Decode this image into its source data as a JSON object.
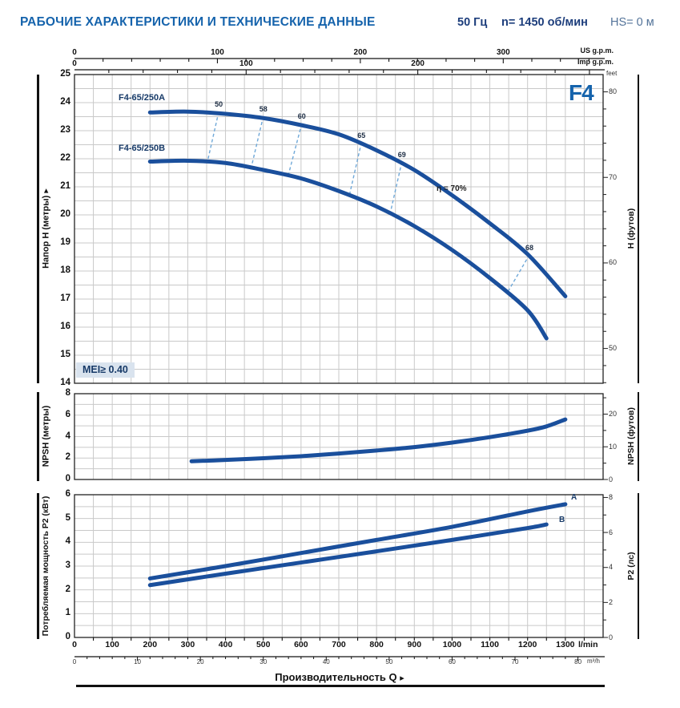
{
  "header": {
    "title": "РАБОЧИЕ ХАРАКТЕРИСТИКИ И ТЕХНИЧЕСКИЕ ДАННЫЕ",
    "frequency": "50 Гц",
    "speed": "n= 1450 об/мин",
    "suction_head": "HS= 0 м"
  },
  "model_badge": "F4",
  "icons": {
    "arrow_right": "▸"
  },
  "colors": {
    "title_blue": "#1563ac",
    "navy": "#1d3e7c",
    "curve_blue": "#1a4f9c",
    "eff_dash_blue": "#6fa8d8",
    "grid_gray": "#c9c9c9",
    "border_dark": "#222222",
    "mei_bg": "#d9e3ee"
  },
  "scales": {
    "us_gpm": {
      "unit": "US g.p.m.",
      "ticks": [
        0,
        100,
        200,
        300
      ],
      "lmin_per_unit": 3.785
    },
    "imp_gpm": {
      "unit": "Imp g.p.m.",
      "ticks": [
        0,
        100,
        200
      ],
      "lmin_per_unit": 4.546
    },
    "lmin": {
      "unit": "l/min",
      "ticks": [
        0,
        100,
        200,
        300,
        400,
        500,
        600,
        700,
        800,
        900,
        1000,
        1100,
        1200,
        1300
      ]
    },
    "m3h": {
      "unit": "m³/h",
      "ticks": [
        0,
        10,
        20,
        30,
        40,
        50,
        60,
        70,
        80
      ],
      "lmin_per_unit": 16.667
    },
    "q_axis_label": "Производительность Q"
  },
  "chart_data": [
    {
      "id": "head",
      "type": "line",
      "title": "F4",
      "ylabel_left": "Напор H (метры)",
      "ylabel_right": "H (футов)",
      "feet_label": "feet",
      "ylim_m": [
        14,
        25
      ],
      "xlim_lmin": [
        0,
        1400
      ],
      "yticks_left": [
        25,
        24,
        23,
        22,
        21,
        20,
        19,
        18,
        17,
        16,
        15,
        14
      ],
      "yticks_right_ft": [
        80,
        70,
        60,
        50
      ],
      "series": [
        {
          "name": "F4-65/250A",
          "x": [
            200,
            300,
            400,
            500,
            600,
            700,
            800,
            900,
            1000,
            1100,
            1200,
            1300
          ],
          "y": [
            23.65,
            23.68,
            23.6,
            23.45,
            23.2,
            22.87,
            22.3,
            21.6,
            20.7,
            19.7,
            18.6,
            17.1
          ]
        },
        {
          "name": "F4-65/250B",
          "x": [
            200,
            300,
            400,
            500,
            600,
            700,
            800,
            900,
            1000,
            1100,
            1200,
            1250
          ],
          "y": [
            21.9,
            21.93,
            21.85,
            21.6,
            21.3,
            20.85,
            20.3,
            19.6,
            18.75,
            17.75,
            16.6,
            15.6
          ]
        }
      ],
      "efficiency_points": [
        {
          "label": "50",
          "qA": 382,
          "qB": 352
        },
        {
          "label": "58",
          "qA": 500,
          "qB": 468
        },
        {
          "label": "60",
          "qA": 602,
          "qB": 566
        },
        {
          "label": "65",
          "qA": 760,
          "qB": 728
        },
        {
          "label": "69",
          "qA": 867,
          "qB": 836
        },
        {
          "label": "68",
          "qA": 1205,
          "qB": 1146
        }
      ],
      "efficiency_curve_label": "η = 70%",
      "mei_label": "MEI≥ 0.40"
    },
    {
      "id": "npsh",
      "type": "line",
      "ylabel_left": "NPSH (метры)",
      "ylabel_right": "NPSH (футов)",
      "ylim_m": [
        0,
        8
      ],
      "yticks_left": [
        8,
        6,
        4,
        2,
        0
      ],
      "yticks_right_ft": [
        20,
        10,
        0
      ],
      "series": [
        {
          "name": "NPSH",
          "x": [
            310,
            400,
            500,
            600,
            700,
            800,
            900,
            1000,
            1100,
            1200,
            1250,
            1300
          ],
          "y": [
            1.7,
            1.82,
            1.98,
            2.17,
            2.42,
            2.7,
            3.02,
            3.44,
            3.95,
            4.55,
            4.95,
            5.6
          ]
        }
      ]
    },
    {
      "id": "p2",
      "type": "line",
      "ylabel_left": "Потребляемая мощность P2 (кВт)",
      "ylabel_right": "P2 (лс)",
      "ylim_kw": [
        0,
        6
      ],
      "yticks_left": [
        6,
        5,
        4,
        3,
        2,
        1,
        0
      ],
      "yticks_right_hp": [
        8,
        6,
        4,
        2,
        0
      ],
      "series": [
        {
          "name": "A",
          "x": [
            200,
            400,
            600,
            800,
            1000,
            1200,
            1300
          ],
          "y": [
            2.48,
            3.0,
            3.55,
            4.1,
            4.65,
            5.3,
            5.6
          ]
        },
        {
          "name": "B",
          "x": [
            200,
            400,
            600,
            800,
            1000,
            1200,
            1250
          ],
          "y": [
            2.2,
            2.68,
            3.15,
            3.62,
            4.1,
            4.6,
            4.75
          ]
        }
      ]
    }
  ]
}
